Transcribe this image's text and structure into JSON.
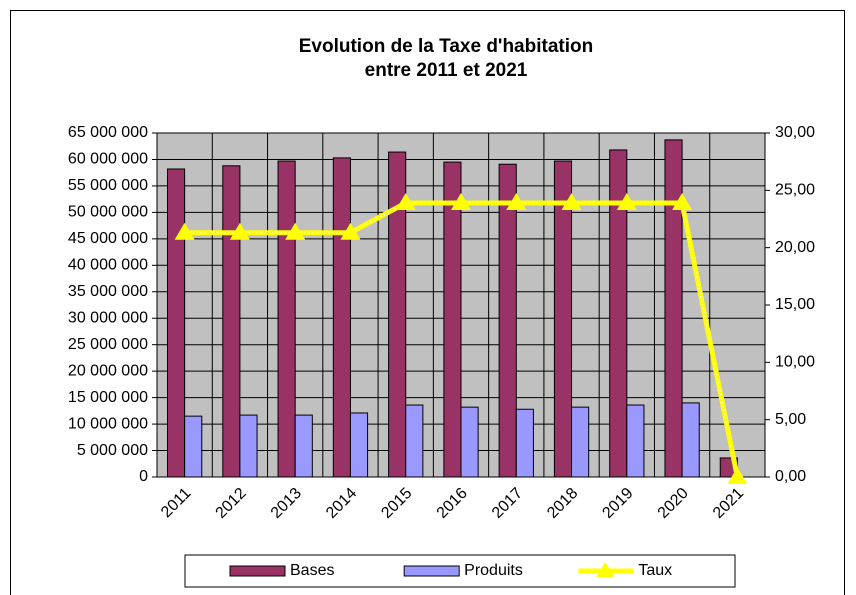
{
  "chart_data": {
    "type": "bar",
    "title": [
      "Evolution de la Taxe d'habitation",
      "entre 2011 et 2021"
    ],
    "categories": [
      "2011",
      "2012",
      "2013",
      "2014",
      "2015",
      "2016",
      "2017",
      "2018",
      "2019",
      "2020",
      "2021"
    ],
    "series": [
      {
        "name": "Bases",
        "color": "#993366",
        "type": "bar",
        "values": [
          58200000,
          58800000,
          59700000,
          60300000,
          61400000,
          59500000,
          59100000,
          59700000,
          61800000,
          63700000,
          3600000
        ]
      },
      {
        "name": "Produits",
        "color": "#9999ff",
        "type": "bar",
        "values": [
          11500000,
          11700000,
          11700000,
          12100000,
          13600000,
          13200000,
          12800000,
          13200000,
          13600000,
          14000000,
          null
        ]
      },
      {
        "name": "Taux",
        "color": "#ffff00",
        "type": "line",
        "axis": "y2",
        "values": [
          21.3,
          21.3,
          21.3,
          21.3,
          23.9,
          23.9,
          23.9,
          23.9,
          23.9,
          23.9,
          0
        ]
      }
    ],
    "ylim": [
      0,
      65000000
    ],
    "yticks": [
      0,
      {
        "value": 5000000,
        "label": "5 000 000"
      },
      {
        "value": 10000000,
        "label": "10 000 000"
      },
      {
        "value": 15000000,
        "label": "15 000 000"
      },
      {
        "value": 20000000,
        "label": "20 000 000"
      },
      {
        "value": 25000000,
        "label": "25 000 000"
      },
      {
        "value": 30000000,
        "label": "30 000 000"
      },
      {
        "value": 35000000,
        "label": "35 000 000"
      },
      {
        "value": 40000000,
        "label": "40 000 000"
      },
      {
        "value": 45000000,
        "label": "45 000 000"
      },
      {
        "value": 50000000,
        "label": "50 000 000"
      },
      {
        "value": 55000000,
        "label": "55 000 000"
      },
      {
        "value": 60000000,
        "label": "60 000 000"
      },
      {
        "value": 65000000,
        "label": "65 000 000"
      }
    ],
    "y2lim": [
      0,
      30
    ],
    "y2ticks": [
      {
        "value": 0,
        "label": "0,00"
      },
      {
        "value": 5,
        "label": "5,00"
      },
      {
        "value": 10,
        "label": "10,00"
      },
      {
        "value": 15,
        "label": "15,00"
      },
      {
        "value": 20,
        "label": "20,00"
      },
      {
        "value": 25,
        "label": "25,00"
      },
      {
        "value": 30,
        "label": "30,00"
      }
    ],
    "grid": true,
    "plot_background": "#c0c0c0",
    "legend": "bottom"
  }
}
